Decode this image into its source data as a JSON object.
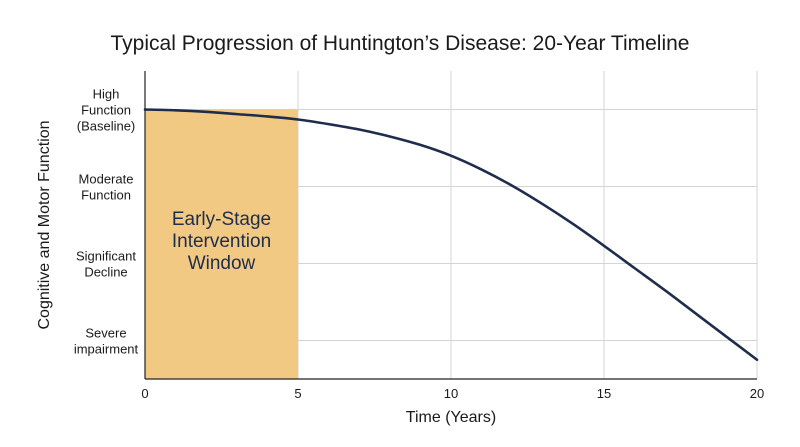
{
  "chart_data": {
    "type": "line",
    "title": "Typical Progression of Huntington’s Disease: 20-Year Timeline",
    "xlabel": "Time (Years)",
    "ylabel": "Cognitive and Motor Function",
    "xlim": [
      0,
      20
    ],
    "ylim": [
      0,
      4
    ],
    "x_ticks": [
      0,
      5,
      10,
      15,
      20
    ],
    "y_ticks": [
      {
        "value": 0.5,
        "lines": [
          "Severe",
          "impairment"
        ]
      },
      {
        "value": 1.5,
        "lines": [
          "Significant",
          "Decline"
        ]
      },
      {
        "value": 2.5,
        "lines": [
          "Moderate",
          "Function"
        ]
      },
      {
        "value": 3.5,
        "lines": [
          "High",
          "Function",
          "(Baseline)"
        ]
      }
    ],
    "grid": true,
    "series": [
      {
        "color": "#1f2d4d",
        "x": [
          0,
          1,
          2,
          3,
          4,
          5,
          6,
          7,
          8,
          9,
          10,
          11,
          12,
          13,
          14,
          15,
          16,
          17,
          18,
          19,
          20
        ],
        "y": [
          3.5,
          3.49,
          3.47,
          3.44,
          3.41,
          3.37,
          3.31,
          3.24,
          3.15,
          3.04,
          2.9,
          2.72,
          2.51,
          2.27,
          2.01,
          1.73,
          1.44,
          1.15,
          0.85,
          0.55,
          0.25
        ]
      }
    ],
    "annotations": [
      {
        "type": "shaded_region",
        "x_range": [
          0,
          5
        ],
        "y_range": [
          0,
          3.5
        ],
        "color": "#f2c983",
        "lines": [
          "Early-Stage",
          "Intervention",
          "Window"
        ]
      }
    ]
  }
}
